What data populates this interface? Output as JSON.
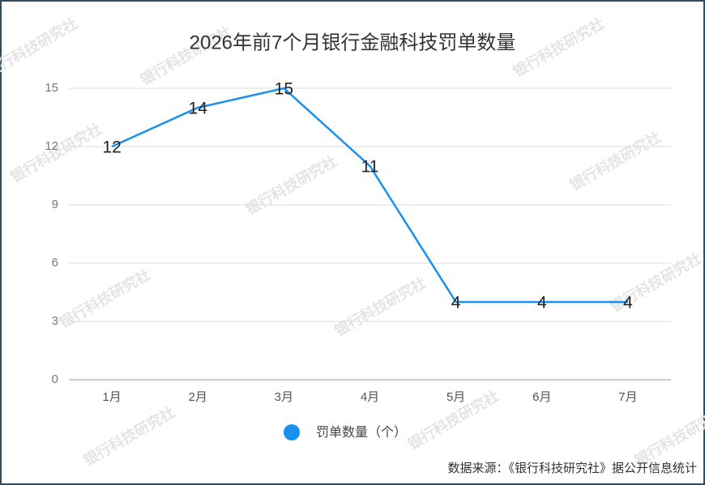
{
  "chart_data": {
    "type": "line",
    "title": "2026年前7个月银行金融科技罚单数量",
    "categories": [
      "1月",
      "2月",
      "3月",
      "4月",
      "5月",
      "6月",
      "7月"
    ],
    "series": [
      {
        "name": "罚单数量（个）",
        "color": "#1890f0",
        "values": [
          12,
          14,
          15,
          11,
          4,
          4,
          4
        ]
      }
    ],
    "ylim": [
      0,
      15
    ],
    "yticks": [
      0,
      3,
      6,
      9,
      12,
      15
    ],
    "grid": true,
    "legend": "bottom",
    "source": "数据来源：《银行科技研究社》据公开信息统计",
    "watermark": "银行科技研究社"
  }
}
